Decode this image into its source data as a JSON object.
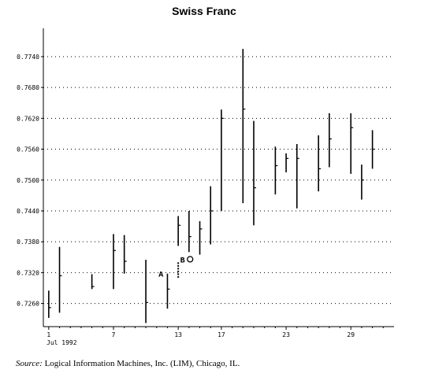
{
  "chart_data": {
    "type": "ohlc",
    "title": "Swiss Franc",
    "xlabel": "Jul 1992",
    "ylabel": "",
    "ylim": [
      0.7215,
      0.7795
    ],
    "xlim": [
      0.5,
      33
    ],
    "yticks": [
      "0.7260",
      "0.7320",
      "0.7380",
      "0.7440",
      "0.7500",
      "0.7560",
      "0.7620",
      "0.7680",
      "0.7740"
    ],
    "xticks": [
      "1",
      "7",
      "13",
      "17",
      "23",
      "29"
    ],
    "grid": true,
    "bars": [
      {
        "x": 1,
        "high": 0.7285,
        "low": 0.7232,
        "close": 0.7252
      },
      {
        "x": 2,
        "high": 0.737,
        "low": 0.7242,
        "close": 0.7314
      },
      {
        "x": 5,
        "high": 0.7317,
        "low": 0.7288,
        "close": 0.7293
      },
      {
        "x": 7,
        "high": 0.7395,
        "low": 0.7288,
        "close": 0.7363
      },
      {
        "x": 8,
        "high": 0.7393,
        "low": 0.7318,
        "close": 0.7342
      },
      {
        "x": 10,
        "high": 0.7345,
        "low": 0.7222,
        "close": 0.7262
      },
      {
        "x": 12,
        "high": 0.7318,
        "low": 0.725,
        "close": 0.7288
      },
      {
        "x": 13,
        "high": 0.743,
        "low": 0.7372,
        "close": 0.7412
      },
      {
        "x": 14,
        "high": 0.744,
        "low": 0.736,
        "close": 0.739
      },
      {
        "x": 15,
        "high": 0.742,
        "low": 0.7355,
        "close": 0.7405
      },
      {
        "x": 16,
        "high": 0.7488,
        "low": 0.7375,
        "close": 0.744
      },
      {
        "x": 17,
        "high": 0.7637,
        "low": 0.744,
        "close": 0.762
      },
      {
        "x": 19,
        "high": 0.7755,
        "low": 0.7455,
        "close": 0.7638
      },
      {
        "x": 20,
        "high": 0.7615,
        "low": 0.7412,
        "close": 0.7485
      },
      {
        "x": 22,
        "high": 0.7565,
        "low": 0.7472,
        "close": 0.7528
      },
      {
        "x": 23,
        "high": 0.7552,
        "low": 0.7515,
        "close": 0.7542
      },
      {
        "x": 24,
        "high": 0.757,
        "low": 0.7445,
        "close": 0.7542
      },
      {
        "x": 26,
        "high": 0.7587,
        "low": 0.7478,
        "close": 0.7522
      },
      {
        "x": 27,
        "high": 0.763,
        "low": 0.7525,
        "close": 0.758
      },
      {
        "x": 29,
        "high": 0.763,
        "low": 0.7512,
        "close": 0.7602
      },
      {
        "x": 30,
        "high": 0.753,
        "low": 0.7462,
        "close": 0.75
      },
      {
        "x": 31,
        "high": 0.7597,
        "low": 0.7522,
        "close": 0.756
      }
    ],
    "annotations": [
      {
        "label": "A",
        "x": 11.4,
        "y": 0.7312
      },
      {
        "label": "B",
        "x": 13.4,
        "y": 0.734
      }
    ],
    "highlight_segment": {
      "x": 13,
      "high": 0.734,
      "low": 0.731
    },
    "highlight_circle": {
      "x": 14.1,
      "y": 0.7346
    }
  },
  "source": {
    "label": "Source:",
    "text": "Logical Information Machines, Inc. (LIM), Chicago, IL."
  }
}
